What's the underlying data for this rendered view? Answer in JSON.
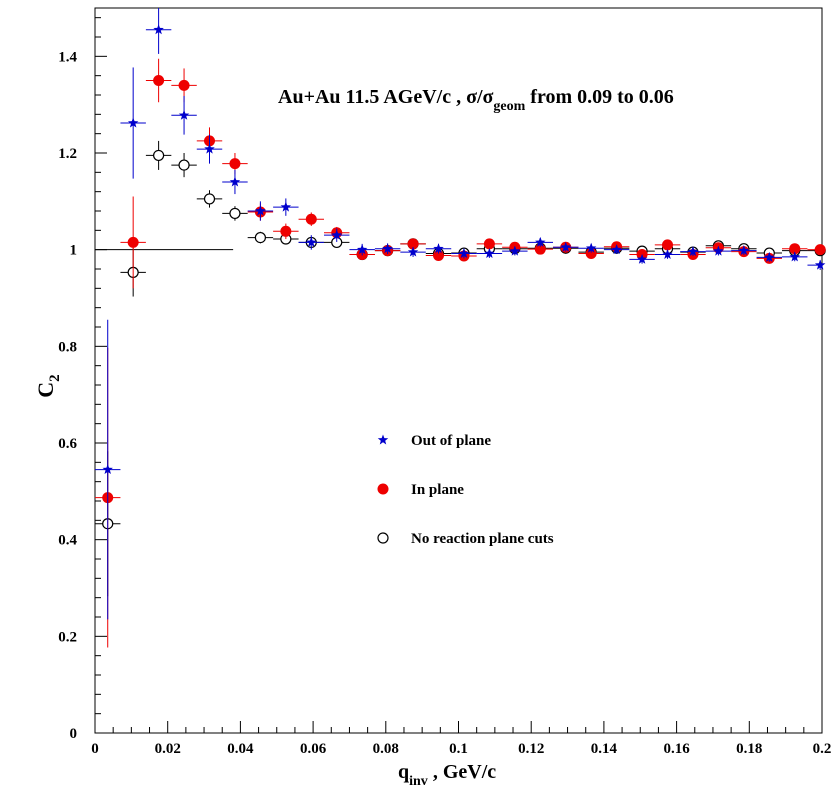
{
  "chart_data": {
    "type": "scatter",
    "title_main": "Au+Au 11.5 AGeV/c , σ/σ",
    "title_sub": "geom",
    "title_tail": " from 0.09 to 0.06",
    "ylabel_main": "C",
    "ylabel_sub": "2",
    "xlabel_main": "q",
    "xlabel_sub": "inv",
    "xlabel_tail": " , GeV/c",
    "xlim": [
      0,
      0.2
    ],
    "ylim": [
      0,
      1.5
    ],
    "reference_line": {
      "y": 1.0,
      "x_from": 0,
      "x_to": 0.038
    },
    "x_ticks": [
      {
        "value": 0,
        "label": "0"
      },
      {
        "value": 0.02,
        "label": "0.02"
      },
      {
        "value": 0.04,
        "label": "0.04"
      },
      {
        "value": 0.06,
        "label": "0.06"
      },
      {
        "value": 0.08,
        "label": "0.08"
      },
      {
        "value": 0.1,
        "label": "0.1"
      },
      {
        "value": 0.12,
        "label": "0.12"
      },
      {
        "value": 0.14,
        "label": "0.14"
      },
      {
        "value": 0.16,
        "label": "0.16"
      },
      {
        "value": 0.18,
        "label": "0.18"
      },
      {
        "value": 0.2,
        "label": "0.2"
      }
    ],
    "y_ticks": [
      {
        "value": 0,
        "label": "0"
      },
      {
        "value": 0.2,
        "label": "0.2"
      },
      {
        "value": 0.4,
        "label": "0.4"
      },
      {
        "value": 0.6,
        "label": "0.6"
      },
      {
        "value": 0.8,
        "label": "0.8"
      },
      {
        "value": 1.0,
        "label": "1"
      },
      {
        "value": 1.2,
        "label": "1.2"
      },
      {
        "value": 1.4,
        "label": "1.4"
      }
    ],
    "legend_placement": "center",
    "series": [
      {
        "name": "Out of plane",
        "marker": "star",
        "color": "#0000cc",
        "points": [
          [
            0.0035,
            0.545,
            0.31
          ],
          [
            0.0105,
            1.262,
            0.115
          ],
          [
            0.0175,
            1.455,
            0.05
          ],
          [
            0.0245,
            1.278,
            0.04
          ],
          [
            0.0315,
            1.208,
            0.03
          ],
          [
            0.0385,
            1.14,
            0.025
          ],
          [
            0.0455,
            1.08,
            0.02
          ],
          [
            0.0525,
            1.088,
            0.018
          ],
          [
            0.0595,
            1.015,
            0.015
          ],
          [
            0.0665,
            1.03,
            0.014
          ],
          [
            0.0735,
            1.0,
            0.012
          ],
          [
            0.0805,
            1.002,
            0.011
          ],
          [
            0.0875,
            0.995,
            0.01
          ],
          [
            0.0945,
            1.002,
            0.01
          ],
          [
            0.1015,
            0.992,
            0.01
          ],
          [
            0.1085,
            0.992,
            0.009
          ],
          [
            0.1155,
            0.997,
            0.009
          ],
          [
            0.1225,
            1.015,
            0.009
          ],
          [
            0.1295,
            1.005,
            0.009
          ],
          [
            0.1365,
            1.003,
            0.009
          ],
          [
            0.1435,
            1.0,
            0.009
          ],
          [
            0.1505,
            0.98,
            0.009
          ],
          [
            0.1575,
            0.99,
            0.009
          ],
          [
            0.1645,
            0.996,
            0.009
          ],
          [
            0.1715,
            0.997,
            0.009
          ],
          [
            0.1785,
            0.998,
            0.009
          ],
          [
            0.1855,
            0.984,
            0.009
          ],
          [
            0.1925,
            0.985,
            0.009
          ],
          [
            0.1995,
            0.968,
            0.01
          ]
        ]
      },
      {
        "name": "In plane",
        "marker": "filled-circle",
        "color": "#ee0000",
        "points": [
          [
            0.0035,
            0.487,
            0.31
          ],
          [
            0.0105,
            1.015,
            0.095
          ],
          [
            0.0175,
            1.35,
            0.045
          ],
          [
            0.0245,
            1.34,
            0.035
          ],
          [
            0.0315,
            1.225,
            0.028
          ],
          [
            0.0385,
            1.178,
            0.022
          ],
          [
            0.0455,
            1.078,
            0.018
          ],
          [
            0.0525,
            1.038,
            0.016
          ],
          [
            0.0595,
            1.063,
            0.014
          ],
          [
            0.0665,
            1.035,
            0.012
          ],
          [
            0.0735,
            0.99,
            0.011
          ],
          [
            0.0805,
            0.998,
            0.01
          ],
          [
            0.0875,
            1.012,
            0.01
          ],
          [
            0.0945,
            0.988,
            0.01
          ],
          [
            0.1015,
            0.987,
            0.009
          ],
          [
            0.1085,
            1.012,
            0.009
          ],
          [
            0.1155,
            1.005,
            0.009
          ],
          [
            0.1225,
            1.001,
            0.009
          ],
          [
            0.1295,
            1.005,
            0.009
          ],
          [
            0.1365,
            0.992,
            0.009
          ],
          [
            0.1435,
            1.006,
            0.009
          ],
          [
            0.1505,
            0.99,
            0.009
          ],
          [
            0.1575,
            1.01,
            0.009
          ],
          [
            0.1645,
            0.99,
            0.009
          ],
          [
            0.1715,
            1.004,
            0.009
          ],
          [
            0.1785,
            0.996,
            0.009
          ],
          [
            0.1855,
            0.982,
            0.009
          ],
          [
            0.1925,
            1.002,
            0.009
          ],
          [
            0.1995,
            1.0,
            0.01
          ]
        ]
      },
      {
        "name": "No reaction plane cuts",
        "marker": "open-circle",
        "color": "#000000",
        "points": [
          [
            0.0035,
            0.433,
            0.15
          ],
          [
            0.0105,
            0.953,
            0.05
          ],
          [
            0.0175,
            1.195,
            0.03
          ],
          [
            0.0245,
            1.175,
            0.025
          ],
          [
            0.0315,
            1.105,
            0.018
          ],
          [
            0.0385,
            1.075,
            0.015
          ],
          [
            0.0455,
            1.025,
            0.012
          ],
          [
            0.0525,
            1.022,
            0.011
          ],
          [
            0.0595,
            1.015,
            0.01
          ],
          [
            0.0665,
            1.015,
            0.009
          ],
          [
            0.0735,
            0.99,
            0.008
          ],
          [
            0.0805,
            0.998,
            0.008
          ],
          [
            0.0875,
            1.012,
            0.008
          ],
          [
            0.0945,
            0.992,
            0.007
          ],
          [
            0.1015,
            0.993,
            0.007
          ],
          [
            0.1085,
            1.002,
            0.007
          ],
          [
            0.1155,
            1.002,
            0.007
          ],
          [
            0.1225,
            1.003,
            0.007
          ],
          [
            0.1295,
            1.003,
            0.007
          ],
          [
            0.1365,
            0.995,
            0.007
          ],
          [
            0.1435,
            1.003,
            0.007
          ],
          [
            0.1505,
            0.997,
            0.007
          ],
          [
            0.1575,
            1.002,
            0.007
          ],
          [
            0.1645,
            0.995,
            0.007
          ],
          [
            0.1715,
            1.008,
            0.007
          ],
          [
            0.1785,
            1.002,
            0.007
          ],
          [
            0.1855,
            0.993,
            0.007
          ],
          [
            0.1925,
            0.998,
            0.007
          ],
          [
            0.1995,
            0.998,
            0.007
          ]
        ]
      }
    ]
  }
}
